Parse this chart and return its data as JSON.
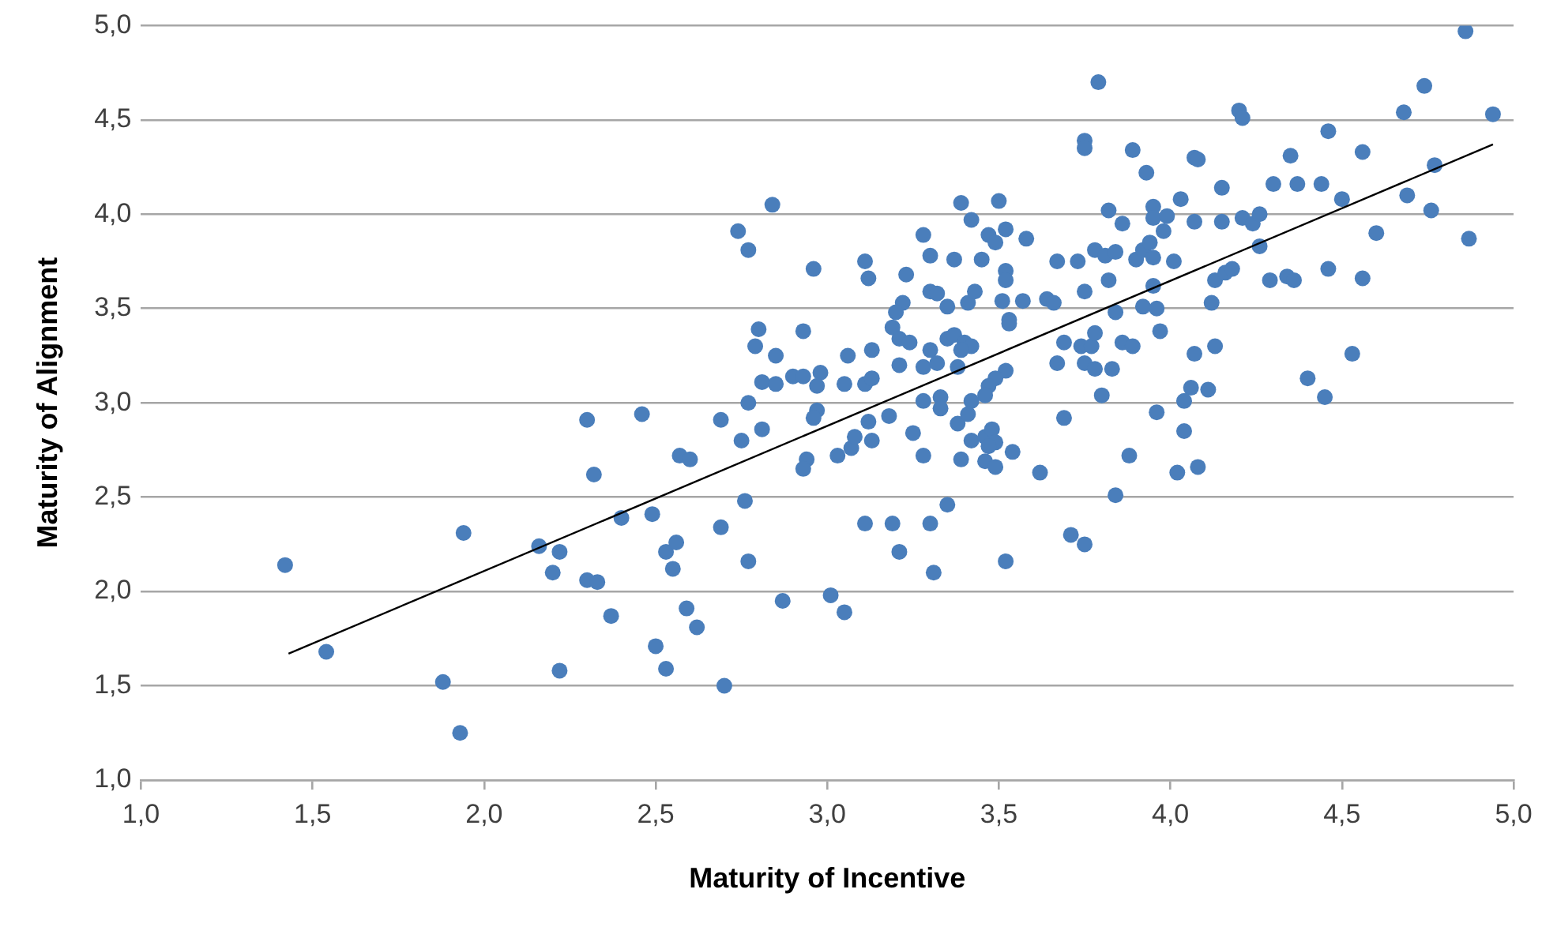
{
  "chart_data": {
    "type": "scatter",
    "xlabel": "Maturity of Incentive",
    "ylabel": "Maturity of Alignment",
    "xlim": [
      1,
      5
    ],
    "ylim": [
      1,
      5
    ],
    "xticks": [
      {
        "value": 1,
        "label": "1,0"
      },
      {
        "value": 1.5,
        "label": "1,5"
      },
      {
        "value": 2,
        "label": "2,0"
      },
      {
        "value": 2.5,
        "label": "2,5"
      },
      {
        "value": 3,
        "label": "3,0"
      },
      {
        "value": 3.5,
        "label": "3,5"
      },
      {
        "value": 4,
        "label": "4,0"
      },
      {
        "value": 4.5,
        "label": "4,5"
      },
      {
        "value": 5,
        "label": "5,0"
      }
    ],
    "yticks": [
      {
        "value": 1,
        "label": "1,0"
      },
      {
        "value": 1.5,
        "label": "1,5"
      },
      {
        "value": 2,
        "label": "2,0"
      },
      {
        "value": 2.5,
        "label": "2,5"
      },
      {
        "value": 3,
        "label": "3,0"
      },
      {
        "value": 3.5,
        "label": "3,5"
      },
      {
        "value": 4,
        "label": "4,0"
      },
      {
        "value": 4.5,
        "label": "4,5"
      },
      {
        "value": 5,
        "label": "5,0"
      }
    ],
    "grid": "y",
    "legend": false,
    "marker": "circle",
    "series": [
      {
        "color": "#4a7ebb",
        "x": [
          2.84,
          2.74,
          2.77,
          2.96,
          3.11,
          3.12,
          3.23,
          3.28,
          3.3,
          3.37,
          3.39,
          3.42,
          3.5,
          3.47,
          3.49,
          3.52,
          3.58,
          3.45,
          3.52,
          3.52,
          3.3,
          3.32,
          3.35,
          3.41,
          3.43,
          3.51,
          3.57,
          3.64,
          3.66,
          3.53,
          3.53,
          3.22,
          3.2,
          3.19,
          3.21,
          3.24,
          2.8,
          2.79,
          2.85,
          2.93,
          3.06,
          3.13,
          3.3,
          3.35,
          3.37,
          3.4,
          3.42,
          3.39,
          3.21,
          3.28,
          3.32,
          3.38,
          2.81,
          2.85,
          2.9,
          2.93,
          2.98,
          2.97,
          3.05,
          3.11,
          3.13,
          3.52,
          3.49,
          3.47,
          3.46,
          3.42,
          3.28,
          3.33,
          2.77,
          4.86,
          3.79,
          4.74,
          4.68,
          4.2,
          4.21,
          4.94,
          4.46,
          3.75,
          3.75,
          3.89,
          4.07,
          4.08,
          4.35,
          4.56,
          3.93,
          4.77,
          4.15,
          4.3,
          4.37,
          4.44,
          4.5,
          4.69,
          4.76,
          4.03,
          3.82,
          3.86,
          3.95,
          3.95,
          3.99,
          3.98,
          4.07,
          4.15,
          4.21,
          4.24,
          4.26,
          4.26,
          4.6,
          4.87,
          3.67,
          3.73,
          3.75,
          3.78,
          3.81,
          3.84,
          3.82,
          3.9,
          3.92,
          3.94,
          3.95,
          4.01,
          3.95,
          4.13,
          4.12,
          4.16,
          4.18,
          4.29,
          4.34,
          4.36,
          4.46,
          4.56,
          3.92,
          3.96,
          3.97,
          3.84,
          3.74,
          3.77,
          3.78,
          3.69,
          3.86,
          3.89,
          3.67,
          3.75,
          3.78,
          3.83,
          4.07,
          4.13,
          4.53,
          4.4,
          4.45,
          4.06,
          4.11,
          4.04,
          3.8,
          2.3,
          2.32,
          1.94,
          1.42,
          2.16,
          2.22,
          2.2,
          2.3,
          2.37,
          1.54,
          1.88,
          2.22,
          1.93,
          2.46,
          2.69,
          2.75,
          2.81,
          2.97,
          2.96,
          2.57,
          2.6,
          2.94,
          2.93,
          3.03,
          3.07,
          3.08,
          3.13,
          3.12,
          3.18,
          3.25,
          3.28,
          3.33,
          3.38,
          3.41,
          3.42,
          3.46,
          3.48,
          3.49,
          3.47,
          3.39,
          3.46,
          3.49,
          3.54,
          3.62,
          2.33,
          2.4,
          2.49,
          2.76,
          2.69,
          3.11,
          3.19,
          3.3,
          3.35,
          2.53,
          2.56,
          2.55,
          2.77,
          3.21,
          3.31,
          3.52,
          2.59,
          2.62,
          2.87,
          3.01,
          3.05,
          2.5,
          2.53,
          2.7,
          3.69,
          3.96,
          4.04,
          3.88,
          4.02,
          4.08,
          3.84,
          3.71,
          3.75
        ],
        "values": [
          4.05,
          3.91,
          3.81,
          3.71,
          3.75,
          3.66,
          3.68,
          3.89,
          3.78,
          3.76,
          4.06,
          3.97,
          4.07,
          3.89,
          3.85,
          3.92,
          3.87,
          3.76,
          3.7,
          3.65,
          3.59,
          3.58,
          3.51,
          3.53,
          3.59,
          3.54,
          3.54,
          3.55,
          3.53,
          3.44,
          3.42,
          3.53,
          3.48,
          3.4,
          3.34,
          3.32,
          3.39,
          3.3,
          3.25,
          3.38,
          3.25,
          3.28,
          3.28,
          3.34,
          3.36,
          3.32,
          3.3,
          3.28,
          3.2,
          3.19,
          3.21,
          3.19,
          3.11,
          3.1,
          3.14,
          3.14,
          3.16,
          3.09,
          3.1,
          3.1,
          3.13,
          3.17,
          3.13,
          3.09,
          3.04,
          3.01,
          3.01,
          3.03,
          3.0,
          4.97,
          4.7,
          4.68,
          4.54,
          4.55,
          4.51,
          4.53,
          4.44,
          4.39,
          4.35,
          4.34,
          4.3,
          4.29,
          4.31,
          4.33,
          4.22,
          4.26,
          4.14,
          4.16,
          4.16,
          4.16,
          4.08,
          4.1,
          4.02,
          4.08,
          4.02,
          3.95,
          4.04,
          3.98,
          3.99,
          3.91,
          3.96,
          3.96,
          3.98,
          3.95,
          4.0,
          3.83,
          3.9,
          3.87,
          3.75,
          3.75,
          3.59,
          3.81,
          3.78,
          3.8,
          3.65,
          3.76,
          3.81,
          3.85,
          3.77,
          3.75,
          3.62,
          3.65,
          3.53,
          3.69,
          3.71,
          3.65,
          3.67,
          3.65,
          3.71,
          3.66,
          3.51,
          3.5,
          3.38,
          3.48,
          3.3,
          3.3,
          3.37,
          3.32,
          3.32,
          3.3,
          3.21,
          3.21,
          3.18,
          3.18,
          3.26,
          3.3,
          3.26,
          3.13,
          3.03,
          3.08,
          3.07,
          3.01,
          3.04,
          2.91,
          2.62,
          2.31,
          2.14,
          2.24,
          2.21,
          2.1,
          2.06,
          1.87,
          1.68,
          1.52,
          1.58,
          1.25,
          2.94,
          2.91,
          2.8,
          2.86,
          2.96,
          2.92,
          2.72,
          2.7,
          2.7,
          2.65,
          2.72,
          2.76,
          2.82,
          2.8,
          2.9,
          2.93,
          2.84,
          2.72,
          2.97,
          2.89,
          2.94,
          2.8,
          2.82,
          2.86,
          2.79,
          2.77,
          2.7,
          2.69,
          2.66,
          2.74,
          2.63,
          2.05,
          2.39,
          2.41,
          2.48,
          2.34,
          2.36,
          2.36,
          2.36,
          2.46,
          2.21,
          2.26,
          2.12,
          2.16,
          2.21,
          2.1,
          2.16,
          1.91,
          1.81,
          1.95,
          1.98,
          1.89,
          1.71,
          1.59,
          1.5,
          2.92,
          2.95,
          2.85,
          2.72,
          2.63,
          2.66,
          2.51,
          2.3,
          2.25
        ]
      },
      {
        "type": "line",
        "color": "#000000",
        "x": [
          1.43,
          4.94
        ],
        "values": [
          1.67,
          4.37
        ],
        "marker": "none"
      }
    ]
  }
}
